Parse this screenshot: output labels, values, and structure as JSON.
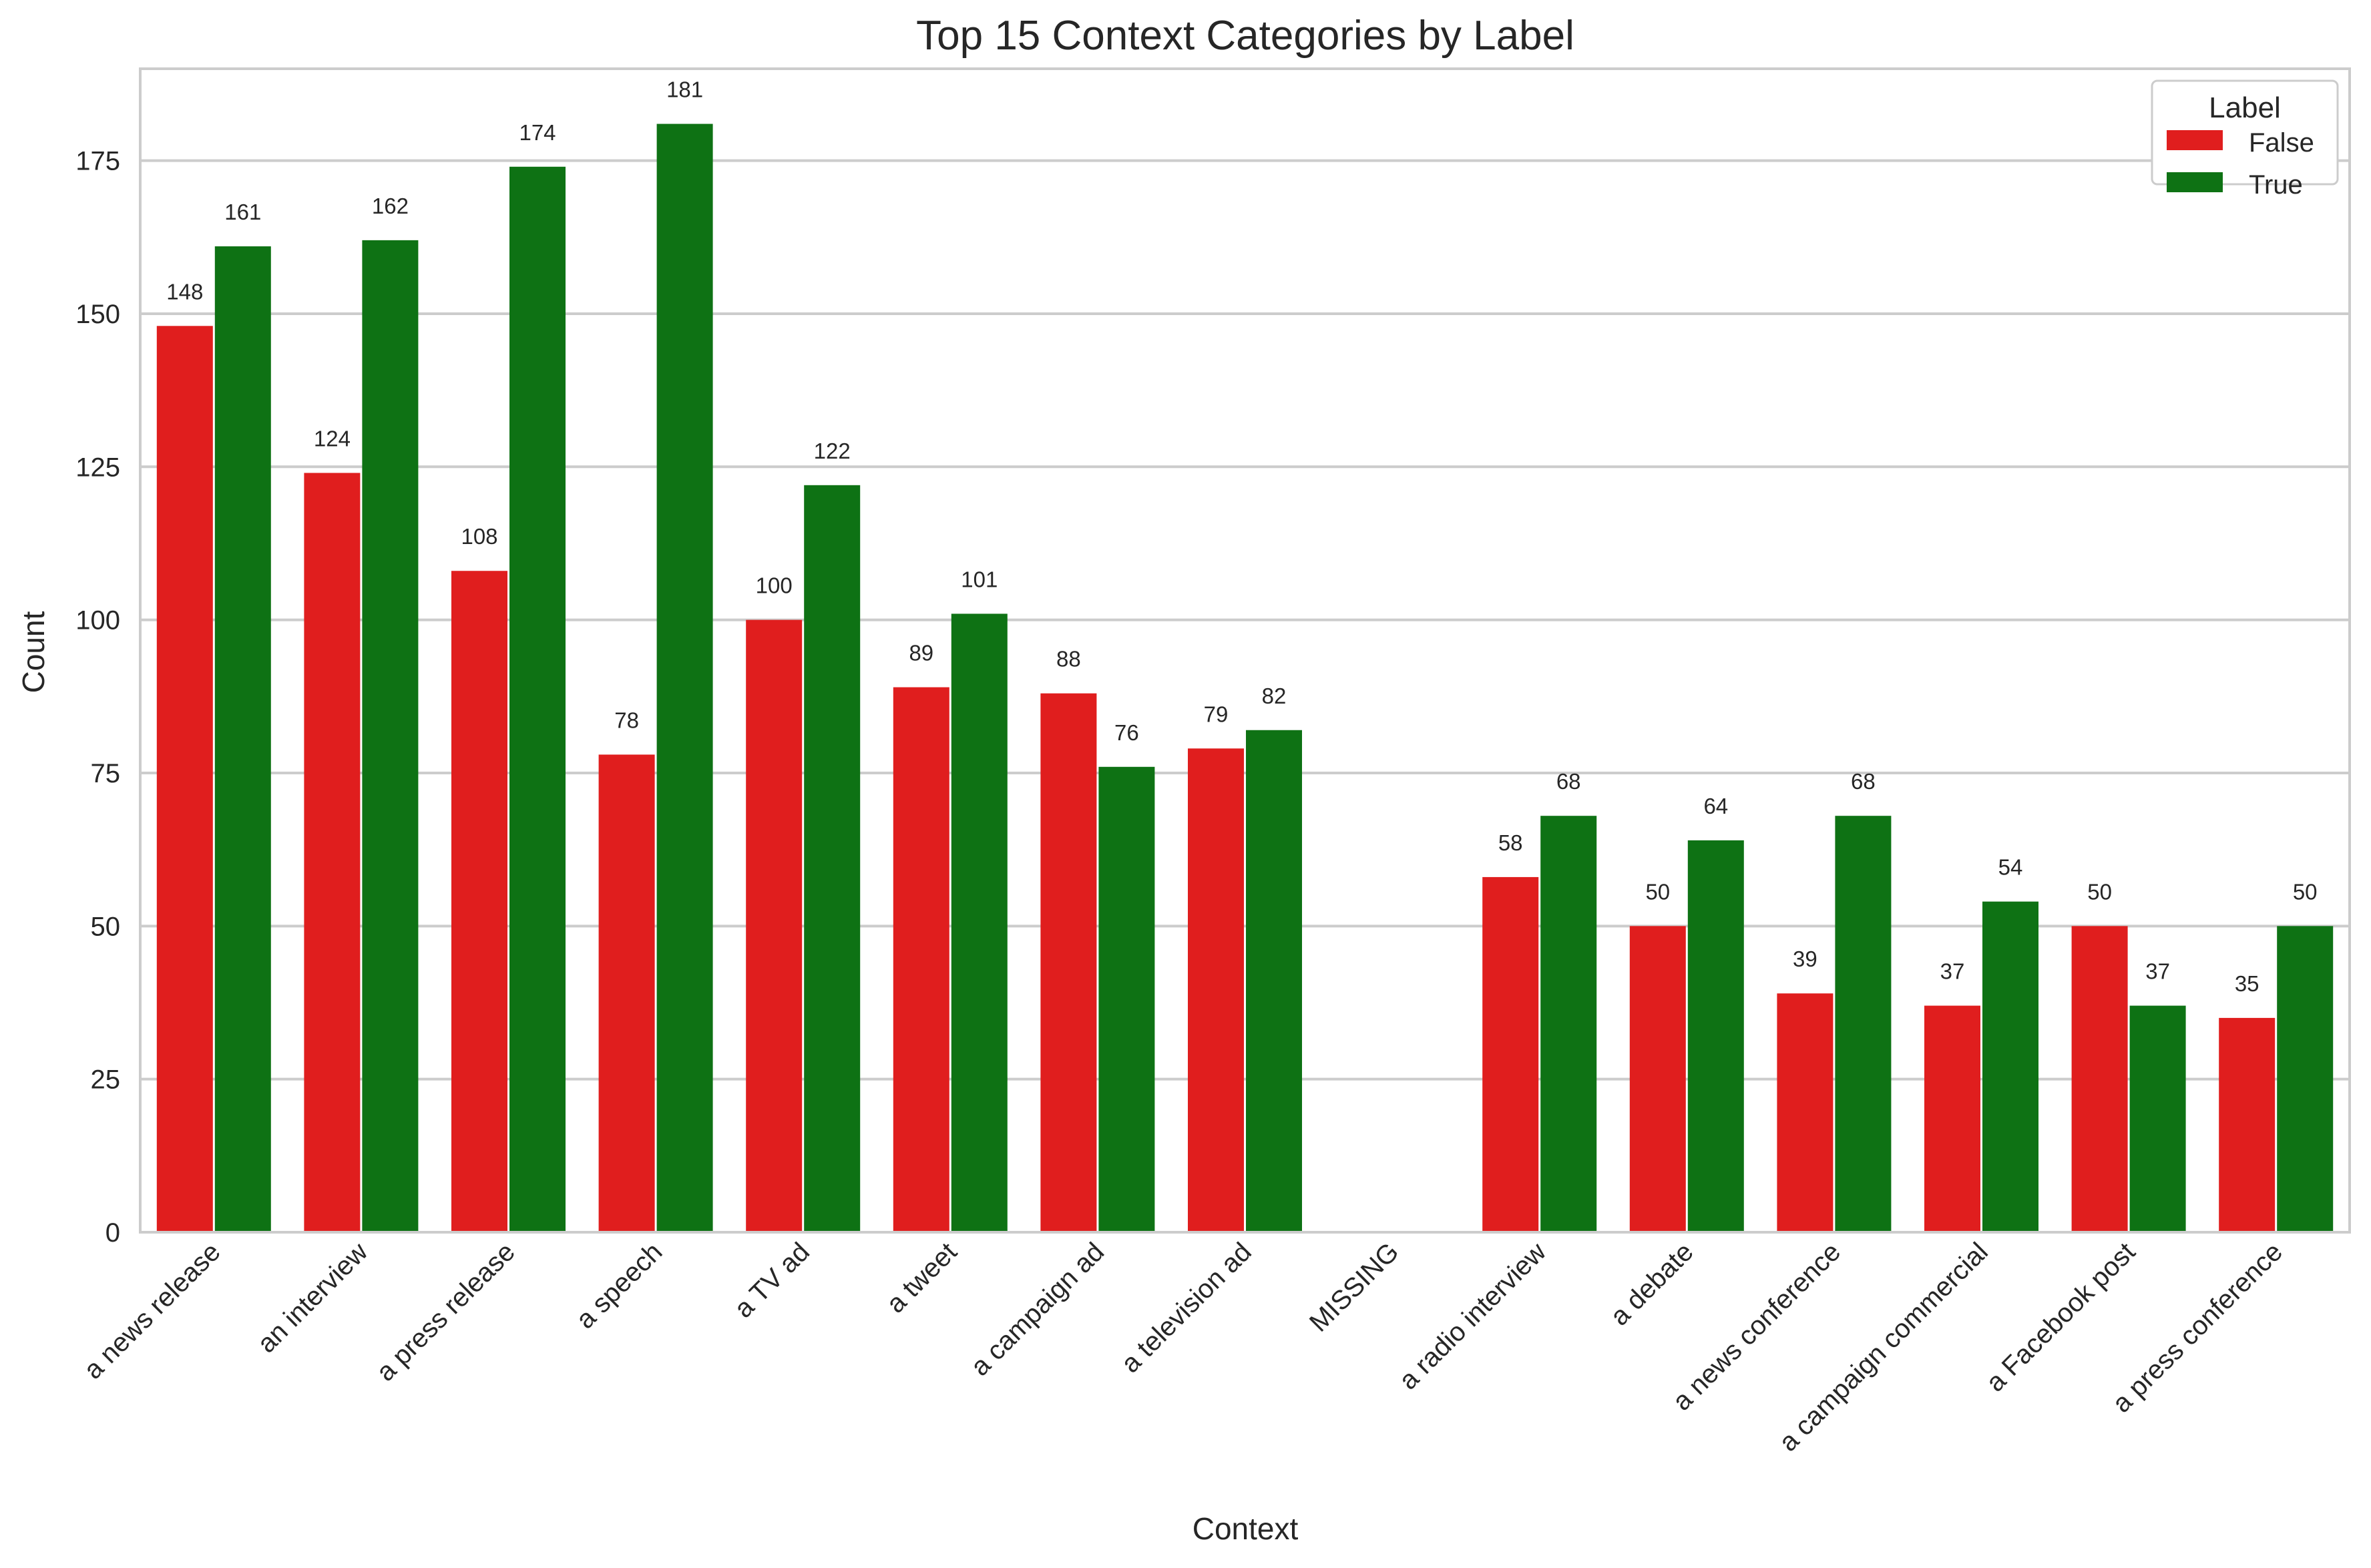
{
  "chart_data": {
    "type": "bar",
    "title": "Top 15 Context Categories by Label",
    "xlabel": "Context",
    "ylabel": "Count",
    "ylim": [
      0,
      190
    ],
    "yticks": [
      0,
      25,
      50,
      75,
      100,
      125,
      150,
      175
    ],
    "grid": "horizontal",
    "categories": [
      "a news release",
      "an interview",
      "a press release",
      "a speech",
      "a TV ad",
      "a tweet",
      "a campaign ad",
      "a television ad",
      "MISSING",
      "a radio interview",
      "a debate",
      "a news conference",
      "a campaign commercial",
      "a Facebook post",
      "a press conference"
    ],
    "series": [
      {
        "name": "False",
        "color": "#e01e1e",
        "values": [
          148,
          124,
          108,
          78,
          100,
          89,
          88,
          79,
          null,
          58,
          50,
          39,
          37,
          50,
          35
        ]
      },
      {
        "name": "True",
        "color": "#0e7214",
        "values": [
          161,
          162,
          174,
          181,
          122,
          101,
          76,
          82,
          null,
          68,
          64,
          68,
          54,
          37,
          50
        ]
      }
    ],
    "legend": {
      "title": "Label",
      "placement": "top-right"
    }
  }
}
